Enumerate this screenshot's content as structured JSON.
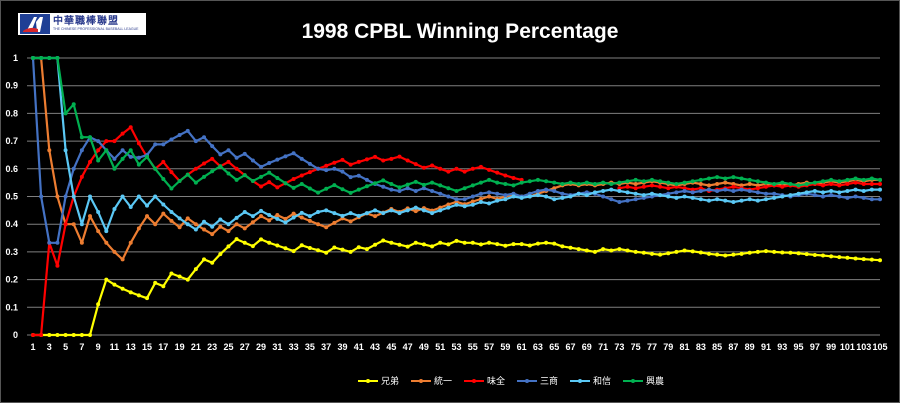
{
  "logo": {
    "text_cn": "中華職棒聯盟",
    "text_en": "THE CHINESE PROFESSIONAL BASEBALL LEAGUE"
  },
  "chart_data": {
    "type": "line",
    "title": "1998 CPBL Winning Percentage",
    "xlabel": "",
    "ylabel": "",
    "ylim": [
      0,
      1
    ],
    "xlim": [
      1,
      105
    ],
    "grid": true,
    "legend": "bottom",
    "y_ticks": [
      "0",
      "0.1",
      "0.2",
      "0.3",
      "0.4",
      "0.5",
      "0.6",
      "0.7",
      "0.8",
      "0.9",
      "1"
    ],
    "x_ticks": [
      1,
      3,
      5,
      7,
      9,
      11,
      13,
      15,
      17,
      19,
      21,
      23,
      25,
      27,
      29,
      31,
      33,
      35,
      37,
      39,
      41,
      43,
      45,
      47,
      49,
      51,
      53,
      55,
      57,
      59,
      61,
      63,
      65,
      67,
      69,
      71,
      73,
      75,
      77,
      79,
      81,
      83,
      85,
      87,
      89,
      91,
      93,
      95,
      97,
      99,
      101,
      103,
      105
    ],
    "series": [
      {
        "name": "兄弟",
        "color": "#ffff00",
        "values": [
          0,
          0,
          0,
          0,
          0,
          0,
          0,
          0,
          0.111,
          0.2,
          0.182,
          0.167,
          0.154,
          0.143,
          0.133,
          0.188,
          0.176,
          0.222,
          0.211,
          0.2,
          0.238,
          0.273,
          0.261,
          0.292,
          0.32,
          0.346,
          0.333,
          0.321,
          0.345,
          0.333,
          0.323,
          0.313,
          0.303,
          0.324,
          0.314,
          0.306,
          0.297,
          0.316,
          0.308,
          0.3,
          0.317,
          0.31,
          0.326,
          0.341,
          0.333,
          0.326,
          0.319,
          0.333,
          0.327,
          0.32,
          0.333,
          0.327,
          0.34,
          0.333,
          0.333,
          0.327,
          0.333,
          0.328,
          0.322,
          0.328,
          0.328,
          0.323,
          0.33,
          0.333,
          0.33,
          0.32,
          0.315,
          0.31,
          0.305,
          0.3,
          0.31,
          0.305,
          0.31,
          0.305,
          0.3,
          0.297,
          0.293,
          0.29,
          0.295,
          0.3,
          0.305,
          0.302,
          0.298,
          0.293,
          0.29,
          0.287,
          0.29,
          0.293,
          0.297,
          0.3,
          0.303,
          0.3,
          0.298,
          0.297,
          0.295,
          0.292,
          0.289,
          0.287,
          0.284,
          0.281,
          0.279,
          0.276,
          0.274,
          0.272,
          0.27
        ]
      },
      {
        "name": "統一",
        "color": "#ed7d31",
        "values": [
          1,
          1,
          0.667,
          0.5,
          0.4,
          0.4,
          0.333,
          0.429,
          0.375,
          0.333,
          0.3,
          0.273,
          0.333,
          0.385,
          0.429,
          0.4,
          0.438,
          0.412,
          0.389,
          0.421,
          0.4,
          0.381,
          0.364,
          0.391,
          0.375,
          0.4,
          0.385,
          0.407,
          0.429,
          0.414,
          0.433,
          0.419,
          0.438,
          0.424,
          0.412,
          0.4,
          0.389,
          0.405,
          0.421,
          0.41,
          0.425,
          0.439,
          0.429,
          0.442,
          0.455,
          0.444,
          0.457,
          0.447,
          0.458,
          0.449,
          0.46,
          0.471,
          0.481,
          0.472,
          0.482,
          0.491,
          0.5,
          0.491,
          0.5,
          0.508,
          0.5,
          0.5,
          0.51,
          0.52,
          0.53,
          0.54,
          0.545,
          0.54,
          0.545,
          0.54,
          0.545,
          0.55,
          0.545,
          0.55,
          0.545,
          0.55,
          0.555,
          0.55,
          0.545,
          0.54,
          0.545,
          0.55,
          0.545,
          0.54,
          0.545,
          0.55,
          0.545,
          0.54,
          0.545,
          0.54,
          0.545,
          0.54,
          0.545,
          0.54,
          0.545,
          0.55,
          0.545,
          0.55,
          0.555,
          0.55,
          0.555,
          0.56,
          0.555,
          0.56,
          0.56
        ]
      },
      {
        "name": "味全",
        "color": "#ff0000",
        "values": [
          0,
          0,
          0.333,
          0.25,
          0.4,
          0.5,
          0.571,
          0.625,
          0.667,
          0.7,
          0.7,
          0.727,
          0.75,
          0.692,
          0.643,
          0.6,
          0.625,
          0.588,
          0.556,
          0.579,
          0.6,
          0.619,
          0.636,
          0.609,
          0.625,
          0.6,
          0.577,
          0.556,
          0.536,
          0.552,
          0.533,
          0.548,
          0.563,
          0.576,
          0.588,
          0.6,
          0.611,
          0.622,
          0.632,
          0.615,
          0.625,
          0.634,
          0.643,
          0.63,
          0.636,
          0.644,
          0.63,
          0.617,
          0.604,
          0.612,
          0.6,
          0.59,
          0.6,
          0.59,
          0.6,
          0.607,
          0.596,
          0.586,
          0.576,
          0.567,
          0.56,
          null,
          null,
          null,
          null,
          null,
          null,
          null,
          null,
          null,
          null,
          null,
          0.53,
          0.535,
          0.53,
          0.535,
          0.54,
          0.535,
          0.53,
          0.535,
          0.53,
          0.525,
          0.53,
          0.52,
          0.525,
          0.53,
          0.535,
          0.53,
          0.525,
          0.53,
          0.535,
          0.54,
          0.535,
          0.54,
          0.535,
          0.54,
          0.545,
          0.54,
          0.545,
          0.54,
          0.545,
          0.55,
          0.545,
          0.545,
          0.545
        ]
      },
      {
        "name": "三商",
        "color": "#4472c4",
        "values": [
          1,
          0.5,
          0.333,
          0.333,
          0.5,
          0.6,
          0.667,
          0.714,
          0.7,
          0.667,
          0.636,
          0.667,
          0.643,
          0.64,
          0.65,
          0.688,
          0.688,
          0.706,
          0.722,
          0.737,
          0.7,
          0.714,
          0.682,
          0.652,
          0.667,
          0.64,
          0.654,
          0.63,
          0.607,
          0.621,
          0.633,
          0.645,
          0.656,
          0.636,
          0.618,
          0.6,
          0.595,
          0.6,
          0.59,
          0.57,
          0.575,
          0.56,
          0.545,
          0.535,
          0.525,
          0.52,
          0.53,
          0.52,
          0.53,
          0.52,
          0.51,
          0.5,
          0.49,
          0.49,
          0.5,
          0.51,
          0.515,
          0.51,
          0.505,
          0.51,
          0.5,
          0.51,
          0.52,
          0.525,
          0.52,
          0.51,
          0.505,
          0.51,
          0.515,
          0.51,
          0.5,
          0.49,
          0.48,
          0.485,
          0.49,
          0.495,
          0.5,
          0.505,
          0.51,
          0.515,
          0.52,
          0.515,
          0.52,
          0.525,
          0.52,
          0.525,
          0.52,
          0.525,
          0.52,
          0.515,
          0.51,
          0.51,
          0.505,
          0.5,
          0.505,
          0.51,
          0.505,
          0.5,
          0.505,
          0.5,
          0.495,
          0.5,
          0.495,
          0.49,
          0.49
        ]
      },
      {
        "name": "和信",
        "color": "#5bc8f5",
        "values": [
          1,
          1,
          1,
          1,
          0.667,
          0.5,
          0.4,
          0.5,
          0.444,
          0.375,
          0.455,
          0.5,
          0.462,
          0.5,
          0.467,
          0.5,
          0.471,
          0.444,
          0.421,
          0.4,
          0.381,
          0.409,
          0.391,
          0.417,
          0.4,
          0.423,
          0.444,
          0.429,
          0.448,
          0.433,
          0.419,
          0.406,
          0.424,
          0.441,
          0.429,
          0.444,
          0.45,
          0.44,
          0.43,
          0.44,
          0.43,
          0.44,
          0.45,
          0.44,
          0.45,
          0.44,
          0.45,
          0.46,
          0.45,
          0.44,
          0.45,
          0.46,
          0.47,
          0.465,
          0.47,
          0.48,
          0.475,
          0.485,
          0.49,
          0.5,
          0.495,
          0.5,
          0.505,
          0.5,
          0.49,
          0.495,
          0.5,
          0.51,
          0.505,
          0.515,
          0.52,
          0.525,
          0.52,
          0.515,
          0.51,
          0.505,
          0.51,
          0.505,
          0.5,
          0.495,
          0.5,
          0.495,
          0.49,
          0.485,
          0.49,
          0.485,
          0.48,
          0.485,
          0.49,
          0.485,
          0.49,
          0.495,
          0.5,
          0.505,
          0.51,
          0.515,
          0.52,
          0.515,
          0.52,
          0.515,
          0.52,
          0.525,
          0.52,
          0.525,
          0.525
        ]
      },
      {
        "name": "興農",
        "color": "#00b050",
        "values": [
          1,
          1,
          1,
          1,
          0.8,
          0.833,
          0.714,
          0.714,
          0.63,
          0.667,
          0.6,
          0.636,
          0.667,
          0.615,
          0.643,
          0.6,
          0.563,
          0.529,
          0.556,
          0.579,
          0.55,
          0.571,
          0.591,
          0.609,
          0.583,
          0.56,
          0.577,
          0.556,
          0.571,
          0.586,
          0.567,
          0.548,
          0.531,
          0.545,
          0.529,
          0.514,
          0.528,
          0.541,
          0.526,
          0.513,
          0.525,
          0.537,
          0.548,
          0.558,
          0.545,
          0.533,
          0.543,
          0.553,
          0.542,
          0.55,
          0.54,
          0.53,
          0.52,
          0.53,
          0.54,
          0.55,
          0.56,
          0.55,
          0.545,
          0.54,
          0.55,
          0.555,
          0.56,
          0.555,
          0.55,
          0.545,
          0.55,
          0.545,
          0.55,
          0.545,
          0.55,
          0.545,
          0.55,
          0.555,
          0.56,
          0.555,
          0.56,
          0.555,
          0.55,
          0.545,
          0.55,
          0.555,
          0.56,
          0.565,
          0.57,
          0.565,
          0.57,
          0.565,
          0.56,
          0.555,
          0.55,
          0.545,
          0.55,
          0.545,
          0.54,
          0.545,
          0.55,
          0.555,
          0.56,
          0.555,
          0.56,
          0.565,
          0.56,
          0.565,
          0.56
        ]
      }
    ]
  }
}
